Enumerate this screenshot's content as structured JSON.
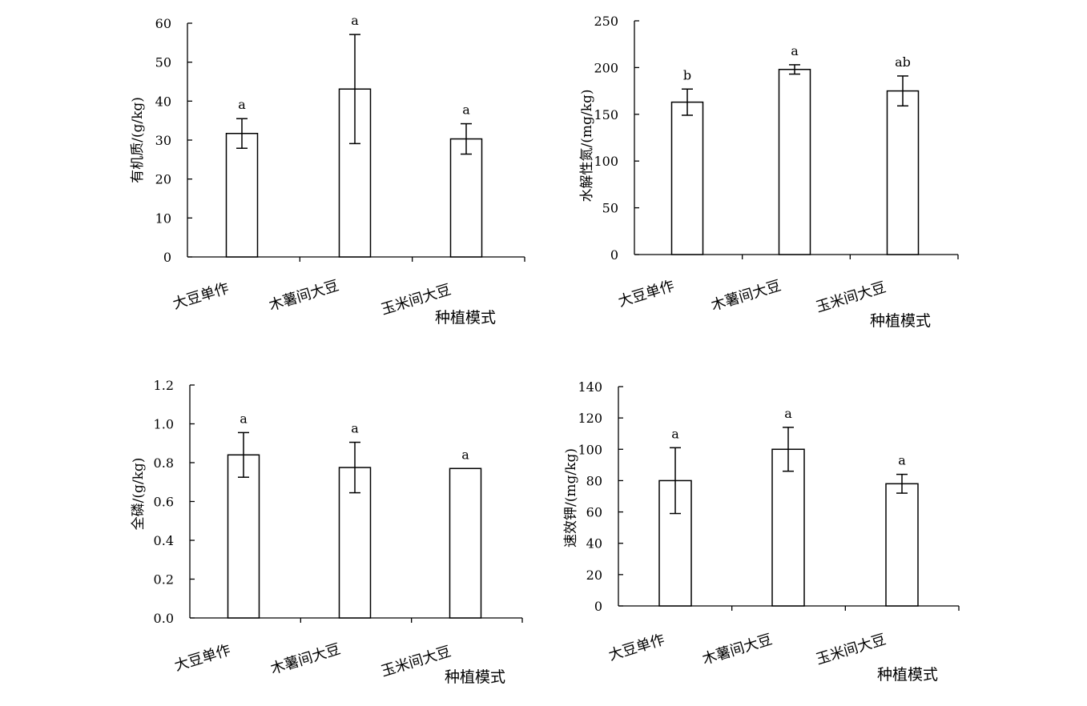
{
  "chart_data": [
    {
      "type": "bar",
      "categories": [
        "大豆单作",
        "木薯间大豆",
        "玉米间大豆"
      ],
      "values": [
        31.7,
        43.1,
        30.3
      ],
      "errors": [
        3.8,
        14.0,
        3.9
      ],
      "significance": [
        "a",
        "a",
        "a"
      ],
      "ylabel": "有机质/(g/kg)",
      "xlabel": "种植模式",
      "ylim": [
        0,
        60
      ],
      "yticks": [
        "0",
        "10",
        "20",
        "30",
        "40",
        "50",
        "60"
      ]
    },
    {
      "type": "bar",
      "categories": [
        "大豆单作",
        "木薯间大豆",
        "玉米间大豆"
      ],
      "values": [
        163,
        198,
        175
      ],
      "errors": [
        14,
        5,
        16
      ],
      "significance": [
        "b",
        "a",
        "ab"
      ],
      "ylabel": "水解性氮/(mg/kg)",
      "xlabel": "种植模式",
      "ylim": [
        0,
        250
      ],
      "yticks": [
        "0",
        "50",
        "100",
        "150",
        "200",
        "250"
      ]
    },
    {
      "type": "bar",
      "categories": [
        "大豆单作",
        "木薯间大豆",
        "玉米间大豆"
      ],
      "values": [
        0.84,
        0.775,
        0.77
      ],
      "errors": [
        0.115,
        0.13,
        0
      ],
      "significance": [
        "a",
        "a",
        "a"
      ],
      "ylabel": "全磷/(g/kg)",
      "xlabel": "种植模式",
      "ylim": [
        0,
        1.2
      ],
      "yticks": [
        "0.0",
        "0.2",
        "0.4",
        "0.6",
        "0.8",
        "1.0",
        "1.2"
      ]
    },
    {
      "type": "bar",
      "categories": [
        "大豆单作",
        "木薯间大豆",
        "玉米间大豆"
      ],
      "values": [
        80,
        100,
        78
      ],
      "errors": [
        21,
        14,
        6
      ],
      "significance": [
        "a",
        "a",
        "a"
      ],
      "ylabel": "速效钾/(mg/kg)",
      "xlabel": "种植模式",
      "ylim": [
        0,
        140
      ],
      "yticks": [
        "0",
        "20",
        "40",
        "60",
        "80",
        "100",
        "120",
        "140"
      ]
    }
  ]
}
